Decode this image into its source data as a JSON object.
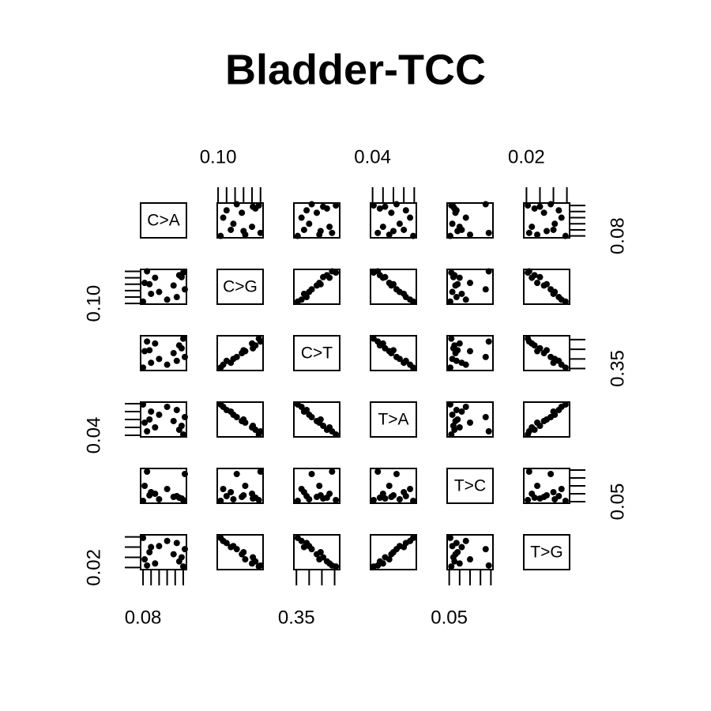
{
  "chart_data": {
    "type": "scatter_matrix",
    "title": "Bladder-TCC",
    "color": "#000000",
    "variables": [
      {
        "name": "C>A",
        "lim": [
          0.077,
          0.134
        ],
        "ticks": [
          {
            "value": 0.08,
            "label": "0.08"
          },
          0.09,
          0.1,
          0.11,
          0.12,
          0.13
        ],
        "values": [
          0.13,
          0.085,
          0.125,
          0.095,
          0.128,
          0.082,
          0.118,
          0.088,
          0.132,
          0.1,
          0.09,
          0.122,
          0.11,
          0.08
        ]
      },
      {
        "name": "C>G",
        "lim": [
          0.099,
          0.153
        ],
        "ticks": [
          {
            "value": 0.1,
            "label": "0.10"
          },
          0.11,
          0.12,
          0.13,
          0.14,
          0.15
        ],
        "values": [
          0.148,
          0.15,
          0.144,
          0.14,
          0.141,
          0.132,
          0.128,
          0.13,
          0.122,
          0.118,
          0.115,
          0.11,
          0.106,
          0.103
        ]
      },
      {
        "name": "C>T",
        "lim": [
          0.34,
          0.52
        ],
        "ticks": [
          {
            "value": 0.35,
            "label": "0.35"
          },
          0.4,
          0.45,
          0.5
        ],
        "values": [
          0.505,
          0.49,
          0.47,
          0.48,
          0.455,
          0.44,
          0.43,
          0.445,
          0.41,
          0.4,
          0.38,
          0.39,
          0.37,
          0.355
        ]
      },
      {
        "name": "T>A",
        "lim": [
          0.038,
          0.082
        ],
        "ticks": [
          {
            "value": 0.04,
            "label": "0.04"
          },
          0.05,
          0.06,
          0.07,
          0.08
        ],
        "values": [
          0.041,
          0.045,
          0.047,
          0.05,
          0.052,
          0.056,
          0.058,
          0.06,
          0.063,
          0.066,
          0.07,
          0.072,
          0.076,
          0.079
        ]
      },
      {
        "name": "T>C",
        "lim": [
          0.048,
          0.092
        ],
        "ticks": [
          {
            "value": 0.05,
            "label": "0.05"
          },
          0.06,
          0.07,
          0.08,
          0.09
        ],
        "values": [
          0.052,
          0.088,
          0.055,
          0.06,
          0.054,
          0.07,
          0.056,
          0.058,
          0.085,
          0.053,
          0.062,
          0.057,
          0.066,
          0.051
        ]
      },
      {
        "name": "T>G",
        "lim": [
          0.018,
          0.052
        ],
        "ticks": [
          {
            "value": 0.02,
            "label": "0.02"
          },
          0.03,
          0.04,
          0.05
        ],
        "values": [
          0.021,
          0.022,
          0.026,
          0.024,
          0.03,
          0.028,
          0.033,
          0.035,
          0.038,
          0.041,
          0.04,
          0.044,
          0.046,
          0.049
        ]
      }
    ]
  }
}
